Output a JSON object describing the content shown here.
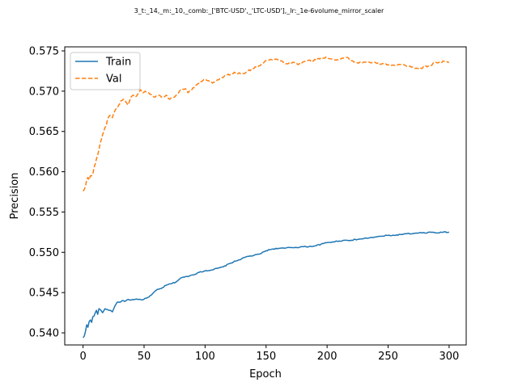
{
  "chart_data": {
    "type": "line",
    "title": "3_t:_14,_m:_10,_comb:_['BTC-USD',_'LTC-USD'],_lr:_1e-6volume_mirror_scaler",
    "xlabel": "Epoch",
    "ylabel": "Precision",
    "xlim": [
      -15,
      314
    ],
    "ylim": [
      0.5385,
      0.5755
    ],
    "xticks": [
      0,
      50,
      100,
      150,
      200,
      250,
      300
    ],
    "yticks": [
      0.54,
      0.545,
      0.55,
      0.555,
      0.56,
      0.565,
      0.57,
      0.575
    ],
    "xtick_labels": [
      "0",
      "50",
      "100",
      "150",
      "200",
      "250",
      "300"
    ],
    "ytick_labels": [
      "0.540",
      "0.545",
      "0.550",
      "0.555",
      "0.560",
      "0.565",
      "0.570",
      "0.575"
    ],
    "grid": false,
    "legend": "upper-left",
    "series": [
      {
        "name": "Train",
        "color": "#1f77b4",
        "style": "solid",
        "keypoints": [
          [
            0,
            0.5394
          ],
          [
            1,
            0.5396
          ],
          [
            2,
            0.5402
          ],
          [
            3,
            0.541
          ],
          [
            4,
            0.5407
          ],
          [
            5,
            0.5414
          ],
          [
            6,
            0.5416
          ],
          [
            7,
            0.5413
          ],
          [
            8,
            0.542
          ],
          [
            9,
            0.5421
          ],
          [
            10,
            0.5425
          ],
          [
            11,
            0.5428
          ],
          [
            12,
            0.5423
          ],
          [
            13,
            0.543
          ],
          [
            14,
            0.5429
          ],
          [
            16,
            0.5425
          ],
          [
            18,
            0.543
          ],
          [
            20,
            0.5429
          ],
          [
            22,
            0.5428
          ],
          [
            24,
            0.5426
          ],
          [
            26,
            0.5433
          ],
          [
            28,
            0.5438
          ],
          [
            30,
            0.5438
          ],
          [
            32,
            0.544
          ],
          [
            34,
            0.5439
          ],
          [
            36,
            0.5441
          ],
          [
            40,
            0.5441
          ],
          [
            44,
            0.5442
          ],
          [
            48,
            0.5441
          ],
          [
            52,
            0.5443
          ],
          [
            56,
            0.5447
          ],
          [
            60,
            0.5453
          ],
          [
            64,
            0.5455
          ],
          [
            68,
            0.5459
          ],
          [
            72,
            0.5461
          ],
          [
            76,
            0.5463
          ],
          [
            80,
            0.5468
          ],
          [
            85,
            0.547
          ],
          [
            90,
            0.5472
          ],
          [
            95,
            0.5475
          ],
          [
            100,
            0.5477
          ],
          [
            105,
            0.5478
          ],
          [
            110,
            0.548
          ],
          [
            115,
            0.5482
          ],
          [
            120,
            0.5486
          ],
          [
            125,
            0.5489
          ],
          [
            130,
            0.5492
          ],
          [
            135,
            0.5495
          ],
          [
            140,
            0.5496
          ],
          [
            145,
            0.5498
          ],
          [
            150,
            0.5502
          ],
          [
            155,
            0.5504
          ],
          [
            160,
            0.5505
          ],
          [
            165,
            0.5505
          ],
          [
            170,
            0.5506
          ],
          [
            175,
            0.5506
          ],
          [
            180,
            0.5507
          ],
          [
            185,
            0.5507
          ],
          [
            190,
            0.5508
          ],
          [
            195,
            0.551
          ],
          [
            200,
            0.5512
          ],
          [
            205,
            0.5513
          ],
          [
            210,
            0.5514
          ],
          [
            215,
            0.5515
          ],
          [
            220,
            0.5515
          ],
          [
            225,
            0.5516
          ],
          [
            230,
            0.5517
          ],
          [
            235,
            0.5518
          ],
          [
            240,
            0.5519
          ],
          [
            245,
            0.552
          ],
          [
            250,
            0.5521
          ],
          [
            255,
            0.5521
          ],
          [
            260,
            0.5522
          ],
          [
            265,
            0.5523
          ],
          [
            270,
            0.5523
          ],
          [
            275,
            0.5524
          ],
          [
            280,
            0.5524
          ],
          [
            285,
            0.5525
          ],
          [
            290,
            0.5524
          ],
          [
            295,
            0.5525
          ],
          [
            300,
            0.5525
          ]
        ]
      },
      {
        "name": "Val",
        "color": "#ff7f0e",
        "style": "dashed",
        "keypoints": [
          [
            0,
            0.5576
          ],
          [
            1,
            0.5578
          ],
          [
            2,
            0.5582
          ],
          [
            3,
            0.559
          ],
          [
            4,
            0.5593
          ],
          [
            5,
            0.559
          ],
          [
            6,
            0.5595
          ],
          [
            7,
            0.5595
          ],
          [
            8,
            0.5597
          ],
          [
            9,
            0.5605
          ],
          [
            10,
            0.561
          ],
          [
            11,
            0.5616
          ],
          [
            12,
            0.5621
          ],
          [
            13,
            0.5627
          ],
          [
            14,
            0.5635
          ],
          [
            15,
            0.564
          ],
          [
            16,
            0.5646
          ],
          [
            17,
            0.565
          ],
          [
            18,
            0.5655
          ],
          [
            19,
            0.5657
          ],
          [
            20,
            0.5665
          ],
          [
            21,
            0.5668
          ],
          [
            22,
            0.567
          ],
          [
            23,
            0.5668
          ],
          [
            24,
            0.5667
          ],
          [
            25,
            0.5672
          ],
          [
            27,
            0.5678
          ],
          [
            29,
            0.5682
          ],
          [
            31,
            0.5688
          ],
          [
            33,
            0.569
          ],
          [
            35,
            0.5687
          ],
          [
            37,
            0.5683
          ],
          [
            39,
            0.5692
          ],
          [
            41,
            0.5695
          ],
          [
            43,
            0.5693
          ],
          [
            45,
            0.5697
          ],
          [
            47,
            0.5702
          ],
          [
            49,
            0.5698
          ],
          [
            51,
            0.57
          ],
          [
            55,
            0.5696
          ],
          [
            58,
            0.5693
          ],
          [
            62,
            0.5695
          ],
          [
            65,
            0.5692
          ],
          [
            68,
            0.5695
          ],
          [
            71,
            0.569
          ],
          [
            74,
            0.5692
          ],
          [
            77,
            0.5696
          ],
          [
            80,
            0.5702
          ],
          [
            84,
            0.5703
          ],
          [
            86,
            0.5698
          ],
          [
            88,
            0.57
          ],
          [
            90,
            0.5704
          ],
          [
            92,
            0.5707
          ],
          [
            95,
            0.571
          ],
          [
            98,
            0.5713
          ],
          [
            100,
            0.5715
          ],
          [
            103,
            0.5713
          ],
          [
            106,
            0.571
          ],
          [
            110,
            0.5714
          ],
          [
            114,
            0.5717
          ],
          [
            118,
            0.572
          ],
          [
            122,
            0.5722
          ],
          [
            126,
            0.5723
          ],
          [
            130,
            0.5721
          ],
          [
            134,
            0.5724
          ],
          [
            138,
            0.5727
          ],
          [
            142,
            0.573
          ],
          [
            146,
            0.5733
          ],
          [
            150,
            0.5738
          ],
          [
            155,
            0.5739
          ],
          [
            160,
            0.5739
          ],
          [
            164,
            0.5736
          ],
          [
            168,
            0.5734
          ],
          [
            172,
            0.5736
          ],
          [
            176,
            0.5733
          ],
          [
            180,
            0.5736
          ],
          [
            184,
            0.5738
          ],
          [
            188,
            0.5737
          ],
          [
            192,
            0.574
          ],
          [
            196,
            0.5741
          ],
          [
            200,
            0.5742
          ],
          [
            204,
            0.574
          ],
          [
            208,
            0.5739
          ],
          [
            212,
            0.5741
          ],
          [
            216,
            0.5742
          ],
          [
            220,
            0.5738
          ],
          [
            224,
            0.5735
          ],
          [
            228,
            0.5736
          ],
          [
            232,
            0.5736
          ],
          [
            236,
            0.5735
          ],
          [
            240,
            0.5735
          ],
          [
            245,
            0.5734
          ],
          [
            250,
            0.5733
          ],
          [
            255,
            0.5732
          ],
          [
            260,
            0.5733
          ],
          [
            265,
            0.5731
          ],
          [
            270,
            0.573
          ],
          [
            275,
            0.5728
          ],
          [
            280,
            0.573
          ],
          [
            284,
            0.5732
          ],
          [
            288,
            0.5735
          ],
          [
            292,
            0.5736
          ],
          [
            296,
            0.5737
          ],
          [
            300,
            0.5736
          ]
        ]
      }
    ]
  }
}
